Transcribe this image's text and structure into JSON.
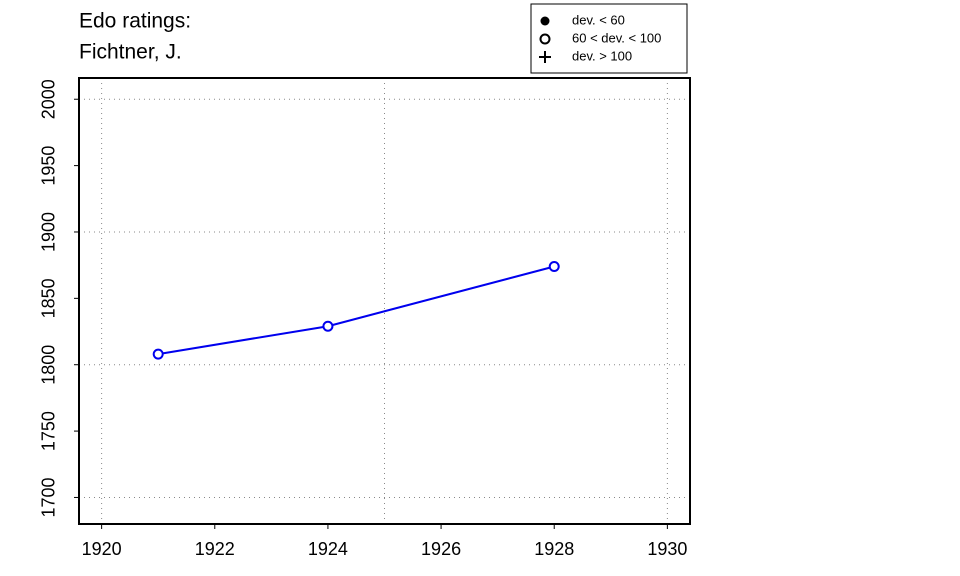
{
  "chart_data": {
    "type": "line",
    "title": "Edo ratings:",
    "subtitle": "Fichtner, J.",
    "x": [
      1921,
      1924,
      1928
    ],
    "series": [
      {
        "name": "Fichtner, J.",
        "color": "#0000ee",
        "values": [
          1808,
          1829,
          1874
        ]
      }
    ],
    "xlim": [
      1919.6,
      1930.4
    ],
    "ylim": [
      1680,
      2016
    ],
    "xticks": [
      1920,
      1922,
      1924,
      1926,
      1928,
      1930
    ],
    "yticks": [
      1700,
      1750,
      1800,
      1850,
      1900,
      1950,
      2000
    ],
    "grid": true,
    "grid_x": [
      1920,
      1925,
      1930
    ],
    "grid_y": [
      1700,
      1800,
      1900,
      2000
    ],
    "legend_position": "top-right",
    "legend": [
      "dev. < 60",
      "60 < dev. < 100",
      "dev. > 100"
    ]
  }
}
